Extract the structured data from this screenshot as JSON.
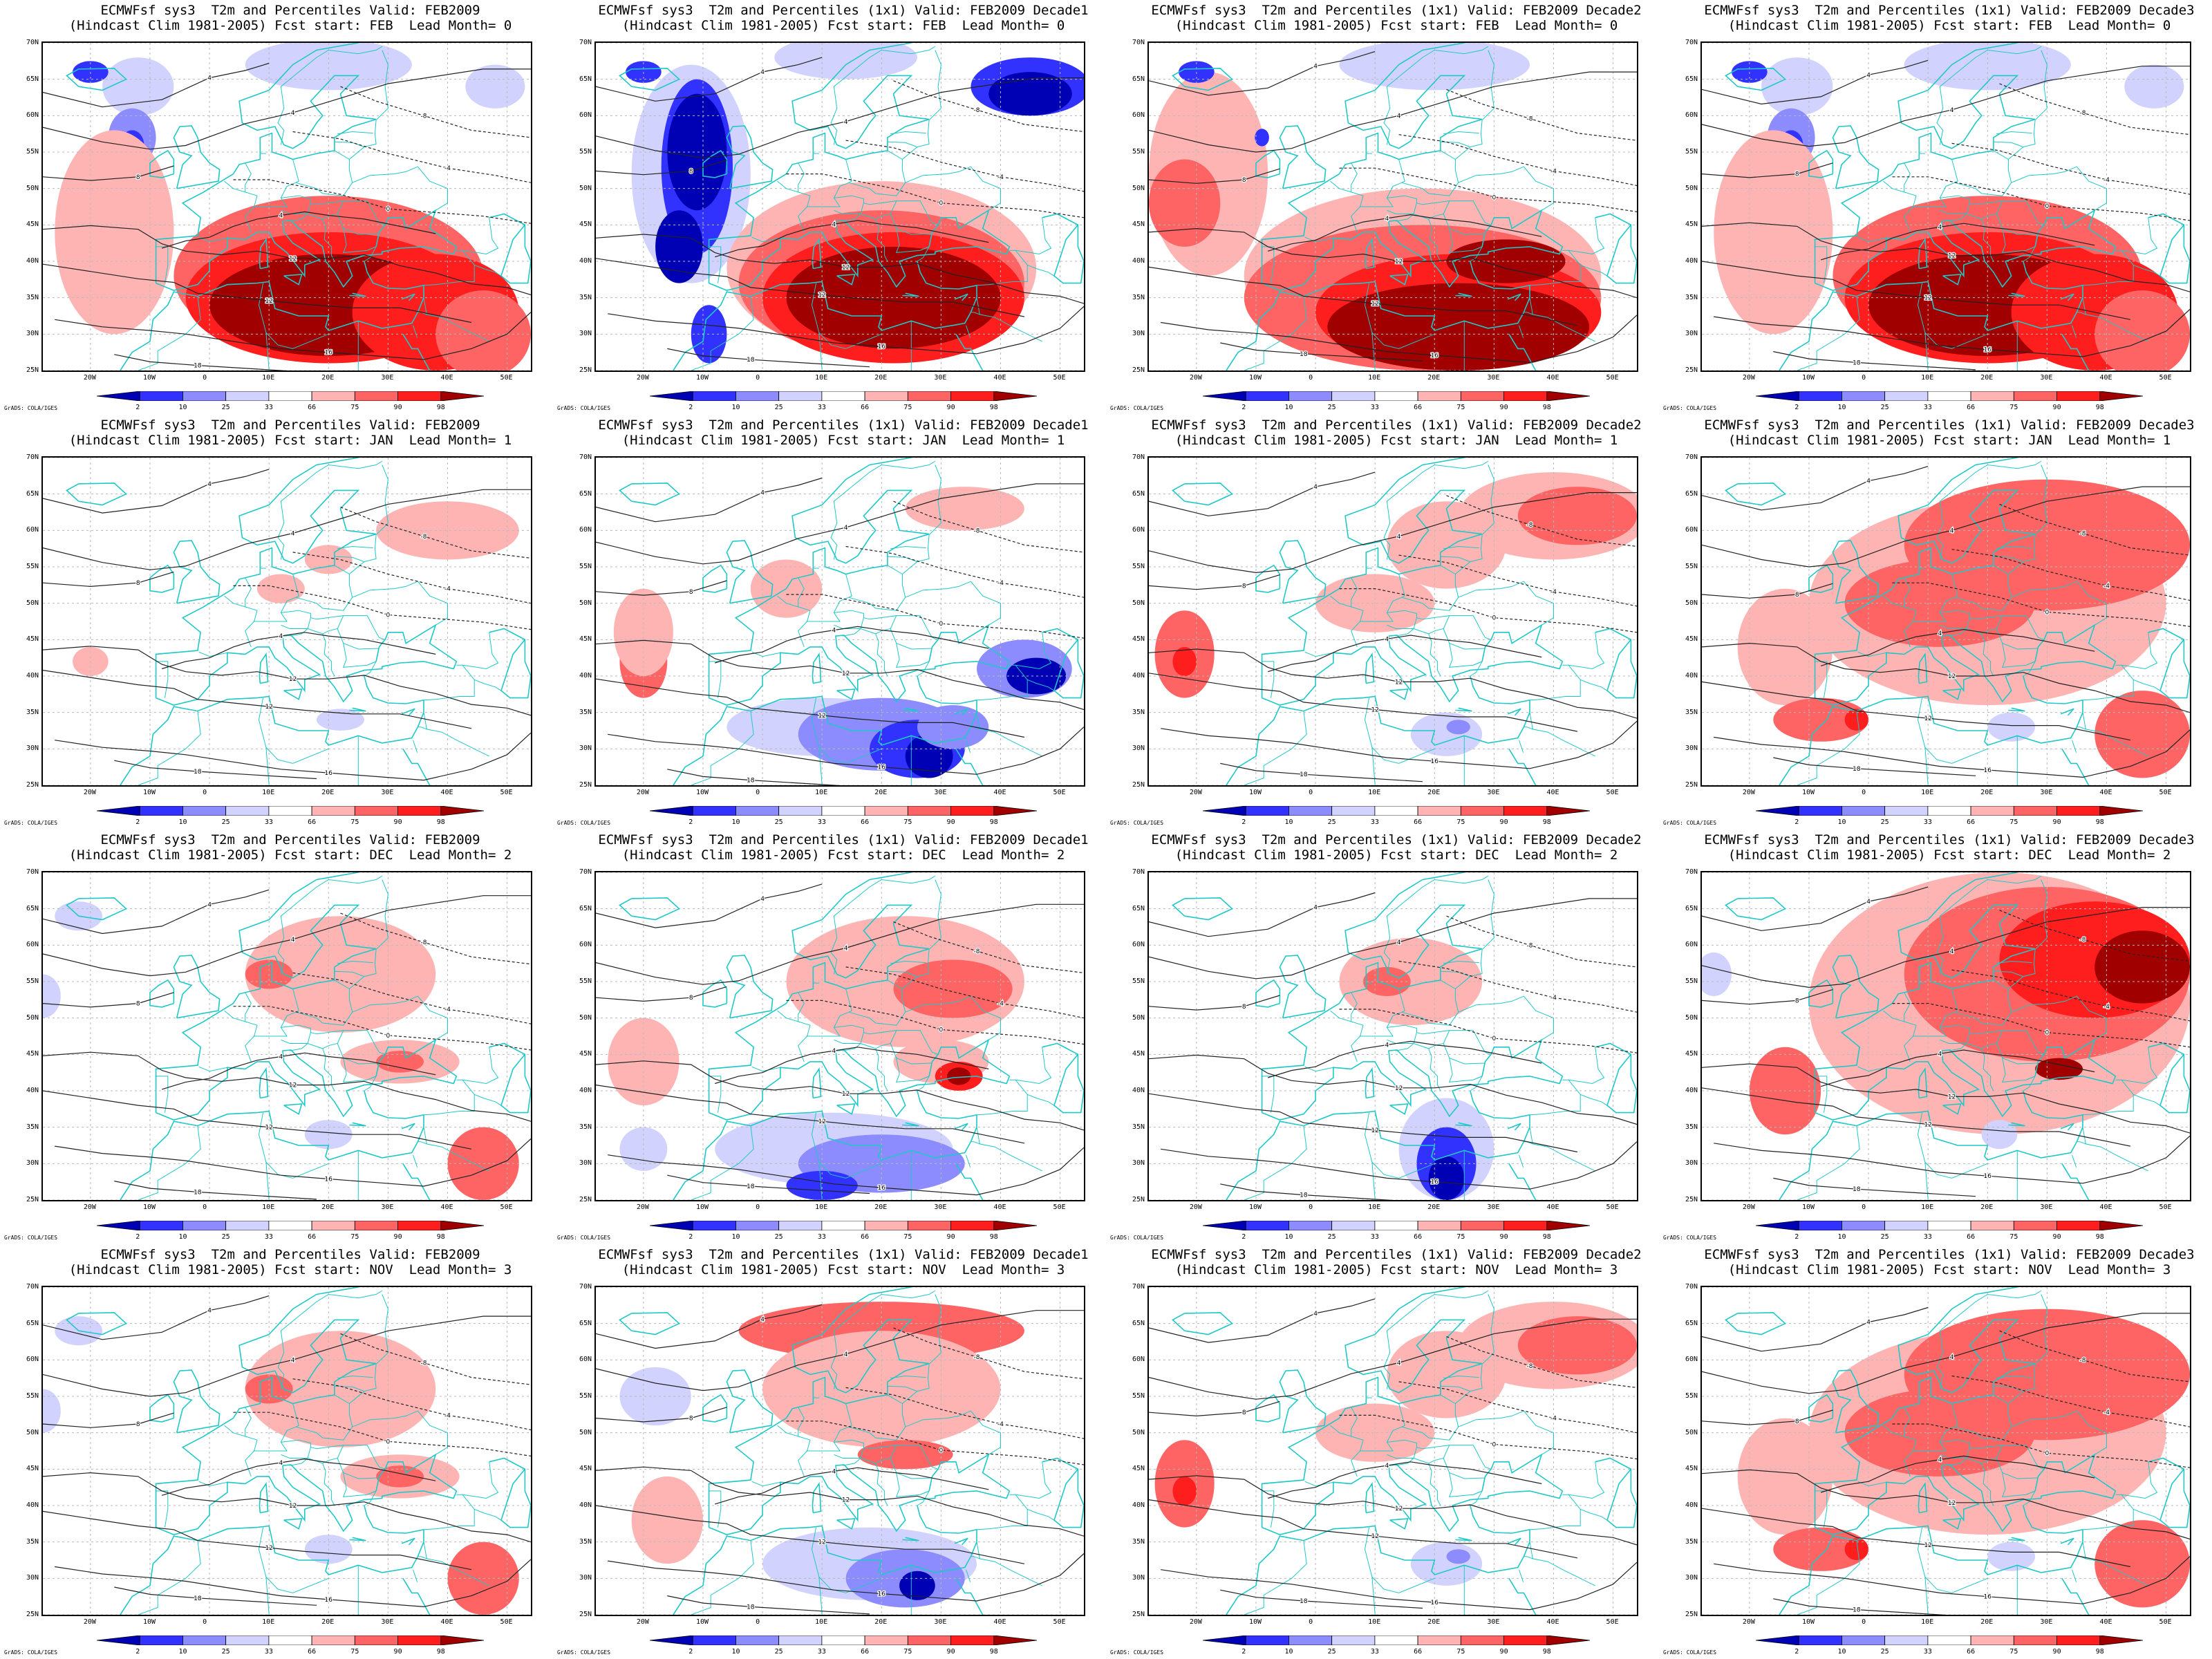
{
  "colorbar": {
    "labels": [
      "2",
      "10",
      "25",
      "33",
      "66",
      "75",
      "90",
      "98"
    ],
    "colors": [
      "#0000b4",
      "#3232ff",
      "#8c8cff",
      "#d2d2ff",
      "#ffffff",
      "#ffb4b4",
      "#ff6464",
      "#ff1e1e",
      "#a00000"
    ]
  },
  "axes": {
    "lat_labels": [
      "70N",
      "65N",
      "60N",
      "55N",
      "50N",
      "45N",
      "40N",
      "35N",
      "30N",
      "25N"
    ],
    "lon_labels": [
      "20W",
      "10W",
      "0",
      "10E",
      "20E",
      "30E",
      "40E",
      "50E"
    ]
  },
  "credit": "GrADS: COLA/IGES",
  "panels": [
    {
      "title1": "ECMWFsf sys3  T2m and Percentiles Valid: FEB2009",
      "title2": "(Hindcast Clim 1981-2005) Fcst start: FEB  Lead Month= 0",
      "type": "warm-south"
    },
    {
      "title1": "ECMWFsf sys3  T2m and Percentiles (1x1) Valid: FEB2009 Decade1",
      "title2": "(Hindcast Clim 1981-2005) Fcst start: FEB  Lead Month= 0",
      "type": "warm-south-cold-west"
    },
    {
      "title1": "ECMWFsf sys3  T2m and Percentiles (1x1) Valid: FEB2009 Decade2",
      "title2": "(Hindcast Clim 1981-2005) Fcst start: FEB  Lead Month= 0",
      "type": "warm-south-wide"
    },
    {
      "title1": "ECMWFsf sys3  T2m and Percentiles (1x1) Valid: FEB2009 Decade3",
      "title2": "(Hindcast Clim 1981-2005) Fcst start: FEB  Lead Month= 0",
      "type": "warm-south"
    },
    {
      "title1": "ECMWFsf sys3  T2m and Percentiles Valid: FEB2009",
      "title2": "(Hindcast Clim 1981-2005) Fcst start: JAN  Lead Month= 1",
      "type": "faint"
    },
    {
      "title1": "ECMWFsf sys3  T2m and Percentiles (1x1) Valid: FEB2009 Decade1",
      "title2": "(Hindcast Clim 1981-2005) Fcst start: JAN  Lead Month= 1",
      "type": "cold-south"
    },
    {
      "title1": "ECMWFsf sys3  T2m and Percentiles (1x1) Valid: FEB2009 Decade2",
      "title2": "(Hindcast Clim 1981-2005) Fcst start: JAN  Lead Month= 1",
      "type": "warm-ne"
    },
    {
      "title1": "ECMWFsf sys3  T2m and Percentiles (1x1) Valid: FEB2009 Decade3",
      "title2": "(Hindcast Clim 1981-2005) Fcst start: JAN  Lead Month= 1",
      "type": "warm-broad"
    },
    {
      "title1": "ECMWFsf sys3  T2m and Percentiles Valid: FEB2009",
      "title2": "(Hindcast Clim 1981-2005) Fcst start: DEC  Lead Month= 2",
      "type": "faint-warm"
    },
    {
      "title1": "ECMWFsf sys3  T2m and Percentiles (1x1) Valid: FEB2009 Decade1",
      "title2": "(Hindcast Clim 1981-2005) Fcst start: DEC  Lead Month= 2",
      "type": "mixed"
    },
    {
      "title1": "ECMWFsf sys3  T2m and Percentiles (1x1) Valid: FEB2009 Decade2",
      "title2": "(Hindcast Clim 1981-2005) Fcst start: DEC  Lead Month= 2",
      "type": "cold-libya"
    },
    {
      "title1": "ECMWFsf sys3  T2m and Percentiles (1x1) Valid: FEB2009 Decade3",
      "title2": "(Hindcast Clim 1981-2005) Fcst start: DEC  Lead Month= 2",
      "type": "warm-strong-east"
    },
    {
      "title1": "ECMWFsf sys3  T2m and Percentiles Valid: FEB2009",
      "title2": "(Hindcast Clim 1981-2005) Fcst start: NOV  Lead Month= 3",
      "type": "faint-warm"
    },
    {
      "title1": "ECMWFsf sys3  T2m and Percentiles (1x1) Valid: FEB2009 Decade1",
      "title2": "(Hindcast Clim 1981-2005) Fcst start: NOV  Lead Month= 3",
      "type": "mixed-nov"
    },
    {
      "title1": "ECMWFsf sys3  T2m and Percentiles (1x1) Valid: FEB2009 Decade2",
      "title2": "(Hindcast Clim 1981-2005) Fcst start: NOV  Lead Month= 3",
      "type": "warm-ne"
    },
    {
      "title1": "ECMWFsf sys3  T2m and Percentiles (1x1) Valid: FEB2009 Decade3",
      "title2": "(Hindcast Clim 1981-2005) Fcst start: NOV  Lead Month= 3",
      "type": "warm-broad"
    }
  ]
}
